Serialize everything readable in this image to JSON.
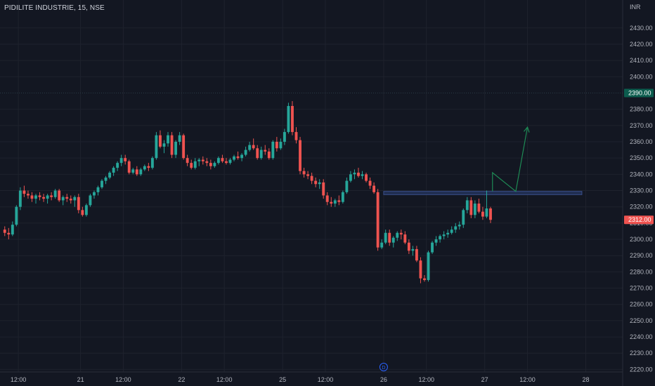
{
  "symbol": {
    "title": "PIDILITE INDUSTRIE, 15, NSE"
  },
  "currency": "INR",
  "colors": {
    "background": "#131722",
    "up": "#26a69a",
    "down": "#ef5350",
    "grid": "#1e222d",
    "text": "#b2b5be",
    "zone": "#1f2d50",
    "zone_line": "#3a4f8a",
    "arrow": "#1e8a55",
    "current_price_tag": "#ef5350",
    "prior_price_tag": "#0c5c4e",
    "prior_price_line": "#2a3a45"
  },
  "event_marker": {
    "icon": "dividend-icon",
    "label": "D"
  },
  "chart_data": {
    "type": "candlestick",
    "title": "PIDILITE INDUSTRIE, 15, NSE",
    "ylabel": "INR",
    "ylim": [
      2215,
      2442
    ],
    "y_ticks": [
      2220,
      2230,
      2240,
      2250,
      2260,
      2270,
      2280,
      2290,
      2300,
      2310,
      2320,
      2330,
      2340,
      2350,
      2360,
      2370,
      2380,
      2400,
      2410,
      2420,
      2430
    ],
    "x_ticks": [
      {
        "label": "12:00",
        "bar": 3.5
      },
      {
        "label": "21",
        "bar": 19.5
      },
      {
        "label": "12:00",
        "bar": 30.5
      },
      {
        "label": "22",
        "bar": 45.5
      },
      {
        "label": "12:00",
        "bar": 56.5
      },
      {
        "label": "25",
        "bar": 71.5
      },
      {
        "label": "12:00",
        "bar": 82.5
      },
      {
        "label": "26",
        "bar": 97.5
      },
      {
        "label": "12:00",
        "bar": 108.5
      },
      {
        "label": "27",
        "bar": 123.5
      },
      {
        "label": "12:00",
        "bar": 134.5
      },
      {
        "label": "28",
        "bar": 149.5
      }
    ],
    "xlim_bars": [
      -0.5,
      159
    ],
    "current_price": {
      "label": "2312.00",
      "value": 2312
    },
    "prior_price": {
      "label": "2390.00",
      "value": 2390
    },
    "resistance_zone": {
      "from_bar": 97.5,
      "to_bar": 148.5,
      "top": 2329.5,
      "bottom": 2327.5
    },
    "projection_path": [
      [
        125.5,
        2329.5
      ],
      [
        125.5,
        2341
      ],
      [
        131.5,
        2329.5
      ],
      [
        134.5,
        2369
      ]
    ],
    "event_bar": 97.5,
    "candles": [
      [
        2306,
        2308,
        2302,
        2304
      ],
      [
        2304,
        2307,
        2300,
        2303
      ],
      [
        2303,
        2311,
        2302,
        2309
      ],
      [
        2309,
        2321,
        2308,
        2320
      ],
      [
        2320,
        2332,
        2318,
        2330
      ],
      [
        2330,
        2333,
        2326,
        2328
      ],
      [
        2328,
        2330,
        2325,
        2327
      ],
      [
        2327,
        2329,
        2323,
        2325
      ],
      [
        2325,
        2328,
        2322,
        2327
      ],
      [
        2327,
        2329,
        2324,
        2326
      ],
      [
        2326,
        2328,
        2323,
        2325
      ],
      [
        2325,
        2328,
        2322,
        2327
      ],
      [
        2327,
        2329,
        2324,
        2326
      ],
      [
        2326,
        2331,
        2325,
        2330
      ],
      [
        2330,
        2331,
        2323,
        2324
      ],
      [
        2324,
        2327,
        2321,
        2326
      ],
      [
        2326,
        2328,
        2323,
        2325
      ],
      [
        2325,
        2327,
        2322,
        2324
      ],
      [
        2324,
        2327,
        2320,
        2326
      ],
      [
        2326,
        2328,
        2316,
        2318
      ],
      [
        2318,
        2320,
        2314,
        2315
      ],
      [
        2315,
        2322,
        2314,
        2321
      ],
      [
        2321,
        2328,
        2320,
        2327
      ],
      [
        2327,
        2330,
        2325,
        2329
      ],
      [
        2329,
        2333,
        2327,
        2332
      ],
      [
        2332,
        2337,
        2331,
        2336
      ],
      [
        2336,
        2339,
        2334,
        2338
      ],
      [
        2338,
        2342,
        2337,
        2341
      ],
      [
        2341,
        2345,
        2339,
        2344
      ],
      [
        2344,
        2348,
        2342,
        2347
      ],
      [
        2347,
        2352,
        2345,
        2350
      ],
      [
        2350,
        2352,
        2346,
        2348
      ],
      [
        2348,
        2349,
        2340,
        2341
      ],
      [
        2341,
        2344,
        2340,
        2343
      ],
      [
        2343,
        2345,
        2339,
        2340
      ],
      [
        2340,
        2344,
        2339,
        2343
      ],
      [
        2343,
        2346,
        2342,
        2345
      ],
      [
        2345,
        2347,
        2342,
        2344
      ],
      [
        2344,
        2351,
        2343,
        2350
      ],
      [
        2350,
        2366,
        2349,
        2364
      ],
      [
        2364,
        2367,
        2356,
        2357
      ],
      [
        2357,
        2361,
        2353,
        2359
      ],
      [
        2359,
        2366,
        2357,
        2364
      ],
      [
        2364,
        2366,
        2350,
        2352
      ],
      [
        2352,
        2361,
        2350,
        2360
      ],
      [
        2360,
        2366,
        2358,
        2364
      ],
      [
        2364,
        2365,
        2349,
        2350
      ],
      [
        2350,
        2352,
        2345,
        2347
      ],
      [
        2347,
        2349,
        2343,
        2344
      ],
      [
        2344,
        2350,
        2343,
        2348
      ],
      [
        2348,
        2350,
        2345,
        2349
      ],
      [
        2349,
        2351,
        2346,
        2348
      ],
      [
        2348,
        2350,
        2345,
        2347
      ],
      [
        2347,
        2349,
        2343,
        2345
      ],
      [
        2345,
        2348,
        2344,
        2347
      ],
      [
        2347,
        2351,
        2346,
        2350
      ],
      [
        2350,
        2352,
        2347,
        2348
      ],
      [
        2348,
        2350,
        2346,
        2347
      ],
      [
        2347,
        2350,
        2346,
        2349
      ],
      [
        2349,
        2352,
        2348,
        2351
      ],
      [
        2351,
        2354,
        2349,
        2350
      ],
      [
        2350,
        2353,
        2348,
        2352
      ],
      [
        2352,
        2357,
        2351,
        2355
      ],
      [
        2355,
        2360,
        2354,
        2358
      ],
      [
        2358,
        2362,
        2355,
        2356
      ],
      [
        2356,
        2358,
        2349,
        2350
      ],
      [
        2350,
        2357,
        2349,
        2355
      ],
      [
        2355,
        2358,
        2352,
        2354
      ],
      [
        2354,
        2356,
        2349,
        2350
      ],
      [
        2350,
        2361,
        2349,
        2360
      ],
      [
        2360,
        2363,
        2354,
        2356
      ],
      [
        2356,
        2362,
        2355,
        2360
      ],
      [
        2360,
        2368,
        2358,
        2366
      ],
      [
        2366,
        2384,
        2365,
        2382
      ],
      [
        2382,
        2385,
        2364,
        2366
      ],
      [
        2366,
        2369,
        2359,
        2361
      ],
      [
        2361,
        2363,
        2340,
        2342
      ],
      [
        2342,
        2344,
        2338,
        2340
      ],
      [
        2340,
        2342,
        2337,
        2339
      ],
      [
        2339,
        2341,
        2334,
        2336
      ],
      [
        2336,
        2338,
        2332,
        2334
      ],
      [
        2334,
        2337,
        2331,
        2335
      ],
      [
        2335,
        2337,
        2325,
        2327
      ],
      [
        2327,
        2329,
        2321,
        2323
      ],
      [
        2323,
        2326,
        2320,
        2322
      ],
      [
        2322,
        2325,
        2320,
        2324
      ],
      [
        2324,
        2327,
        2321,
        2323
      ],
      [
        2323,
        2330,
        2322,
        2329
      ],
      [
        2329,
        2338,
        2328,
        2336
      ],
      [
        2336,
        2342,
        2335,
        2340
      ],
      [
        2340,
        2343,
        2337,
        2341
      ],
      [
        2341,
        2344,
        2338,
        2339
      ],
      [
        2339,
        2342,
        2337,
        2340
      ],
      [
        2340,
        2341,
        2335,
        2336
      ],
      [
        2336,
        2338,
        2331,
        2333
      ],
      [
        2333,
        2335,
        2328,
        2329
      ],
      [
        2329,
        2331,
        2293,
        2295
      ],
      [
        2295,
        2300,
        2294,
        2298
      ],
      [
        2298,
        2306,
        2297,
        2304
      ],
      [
        2304,
        2306,
        2296,
        2298
      ],
      [
        2298,
        2302,
        2295,
        2301
      ],
      [
        2301,
        2305,
        2299,
        2304
      ],
      [
        2304,
        2306,
        2300,
        2303
      ],
      [
        2303,
        2305,
        2297,
        2298
      ],
      [
        2298,
        2300,
        2291,
        2293
      ],
      [
        2293,
        2296,
        2290,
        2294
      ],
      [
        2294,
        2296,
        2286,
        2287
      ],
      [
        2287,
        2289,
        2273,
        2276
      ],
      [
        2276,
        2278,
        2274,
        2275
      ],
      [
        2275,
        2293,
        2274,
        2292
      ],
      [
        2292,
        2299,
        2291,
        2298
      ],
      [
        2298,
        2302,
        2296,
        2300
      ],
      [
        2300,
        2303,
        2298,
        2302
      ],
      [
        2302,
        2305,
        2300,
        2303
      ],
      [
        2303,
        2306,
        2301,
        2304
      ],
      [
        2304,
        2308,
        2303,
        2306
      ],
      [
        2306,
        2310,
        2304,
        2308
      ],
      [
        2308,
        2311,
        2306,
        2309
      ],
      [
        2309,
        2319,
        2307,
        2318
      ],
      [
        2318,
        2326,
        2316,
        2324
      ],
      [
        2324,
        2326,
        2313,
        2315
      ],
      [
        2315,
        2324,
        2313,
        2322
      ],
      [
        2322,
        2325,
        2316,
        2317
      ],
      [
        2317,
        2320,
        2312,
        2314
      ],
      [
        2314,
        2330,
        2313,
        2319
      ],
      [
        2319,
        2320,
        2310,
        2312
      ]
    ]
  }
}
